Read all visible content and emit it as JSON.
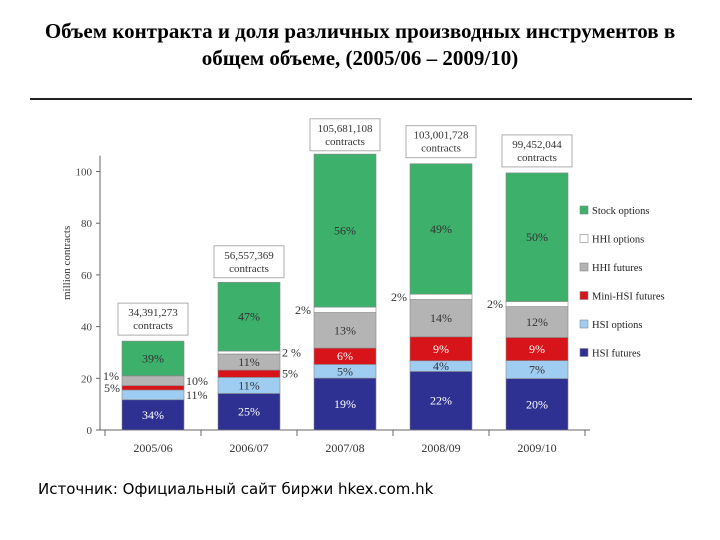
{
  "title": "Объем контракта и доля различных производных инструментов в общем объеме, (2005/06 – 2009/10)",
  "source": "Источник: Официальный сайт биржи hkex.com.hk",
  "chart_data": {
    "type": "bar",
    "stacked": true,
    "ylabel": "million contracts",
    "ylim": [
      0,
      110
    ],
    "yticks": [
      0,
      20,
      40,
      60,
      80,
      100
    ],
    "categories": [
      "2005/06",
      "2006/07",
      "2007/08",
      "2008/09",
      "2009/10"
    ],
    "totals": [
      34.391273,
      56.557369,
      105.681108,
      103.001728,
      99.452044
    ],
    "total_labels": [
      "34,391,273",
      "56,557,369",
      "105,681,108",
      "103,001,728",
      "99,452,044"
    ],
    "total_unit": "contracts",
    "series": [
      {
        "name": "HSI futures",
        "color": "#2e3192",
        "shares": [
          34,
          25,
          19,
          22,
          20
        ],
        "labels": [
          "34%",
          "25%",
          "19%",
          "22%",
          "20%"
        ]
      },
      {
        "name": "HSI options",
        "color": "#9fcdf2",
        "shares": [
          11,
          11,
          5,
          4,
          7
        ],
        "labels": [
          "11%",
          "11%",
          "5%",
          "4%",
          "7%"
        ]
      },
      {
        "name": "Mini-HSI futures",
        "color": "#d7141a",
        "shares": [
          5,
          5,
          6,
          9,
          9
        ],
        "labels": [
          "5%",
          "5%",
          "6%",
          "9%",
          "9%"
        ]
      },
      {
        "name": "HHI futures",
        "color": "#b4b4b4",
        "shares": [
          10,
          11,
          13,
          14,
          12
        ],
        "labels": [
          "10%",
          "11%",
          "13%",
          "14%",
          "12%"
        ]
      },
      {
        "name": "HHI options",
        "color": "#ffffff",
        "shares": [
          1,
          2,
          2,
          2,
          2
        ],
        "labels": [
          "1%",
          "2 %",
          "2%",
          "2%",
          "2%"
        ]
      },
      {
        "name": "Stock options",
        "color": "#3db06b",
        "shares": [
          39,
          47,
          56,
          49,
          50
        ],
        "labels": [
          "39%",
          "47%",
          "56%",
          "49%",
          "50%"
        ]
      }
    ],
    "legend_position": "right",
    "grid": false
  }
}
